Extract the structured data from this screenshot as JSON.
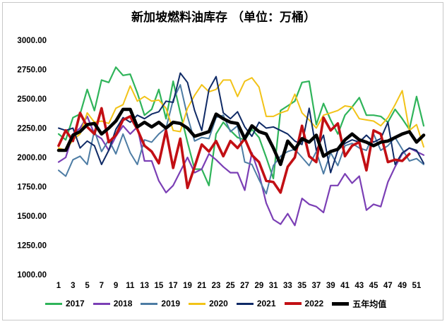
{
  "chart_data": {
    "type": "line",
    "title": "新加坡燃料油库存  （单位：万桶）",
    "xlabel": "",
    "ylabel": "",
    "ylim": [
      1000,
      3000
    ],
    "yticks": [
      "1000.00",
      "1250.00",
      "1500.00",
      "1750.00",
      "2000.00",
      "2250.00",
      "2500.00",
      "2750.00",
      "3000.00"
    ],
    "x": [
      1,
      2,
      3,
      4,
      5,
      6,
      7,
      8,
      9,
      10,
      11,
      12,
      13,
      14,
      15,
      16,
      17,
      18,
      19,
      20,
      21,
      22,
      23,
      24,
      25,
      26,
      27,
      28,
      29,
      30,
      31,
      32,
      33,
      34,
      35,
      36,
      37,
      38,
      39,
      40,
      41,
      42,
      43,
      44,
      45,
      46,
      47,
      48,
      49,
      50,
      51,
      52
    ],
    "xticks": [
      "1",
      "3",
      "5",
      "7",
      "9",
      "11",
      "13",
      "15",
      "17",
      "19",
      "21",
      "23",
      "25",
      "27",
      "29",
      "31",
      "33",
      "35",
      "37",
      "39",
      "41",
      "43",
      "45",
      "47",
      "49",
      "51"
    ],
    "series": [
      {
        "name": "2017",
        "color": "#2fb45a",
        "width": 2.2,
        "values": [
          2200,
          2150,
          2340,
          2370,
          2580,
          2400,
          2660,
          2640,
          2770,
          2700,
          2710,
          2550,
          2360,
          2410,
          2580,
          2330,
          2650,
          2380,
          2130,
          1900,
          1900,
          1760,
          2200,
          2300,
          2230,
          2170,
          2150,
          2240,
          2170,
          2000,
          1820,
          2400,
          2440,
          2480,
          2640,
          2650,
          2280,
          2460,
          2320,
          2200,
          2360,
          2430,
          2510,
          2360,
          2360,
          2350,
          2300,
          2410,
          2330,
          2240,
          2520,
          2270
        ]
      },
      {
        "name": "2018",
        "color": "#7b3fb5",
        "width": 2.2,
        "values": [
          1960,
          2000,
          2200,
          2250,
          2350,
          2200,
          2160,
          2060,
          2180,
          2270,
          2200,
          2260,
          1970,
          1970,
          1800,
          1700,
          1760,
          1880,
          2000,
          1870,
          1900,
          2030,
          1980,
          1920,
          1870,
          1870,
          1720,
          2040,
          1860,
          1610,
          1470,
          1430,
          1520,
          1420,
          1650,
          1600,
          1580,
          1530,
          1760,
          1760,
          1860,
          1780,
          1840,
          1550,
          1600,
          1580,
          1790,
          1920,
          2030,
          2080,
          2050,
          2020
        ]
      },
      {
        "name": "2019",
        "color": "#4d7ca4",
        "width": 2.0,
        "values": [
          1890,
          1840,
          1980,
          2010,
          1940,
          2230,
          2050,
          2150,
          2030,
          2200,
          2040,
          1940,
          2150,
          2130,
          2200,
          2250,
          2490,
          2620,
          2350,
          2140,
          2170,
          2160,
          2340,
          2360,
          2220,
          2270,
          1960,
          1940,
          1810,
          1690,
          1930,
          2010,
          2050,
          2070,
          2000,
          1930,
          2050,
          1860,
          2040,
          1930,
          2100,
          2120,
          2080,
          2060,
          2200,
          2060,
          2100,
          2170,
          2070,
          1970,
          1990,
          1940
        ]
      },
      {
        "name": "2020",
        "color": "#f2c318",
        "width": 2.0,
        "values": [
          2080,
          2060,
          2150,
          2200,
          2380,
          2300,
          2310,
          2290,
          2420,
          2450,
          2610,
          2480,
          2520,
          2480,
          2490,
          2420,
          2230,
          2220,
          2420,
          2530,
          2620,
          2560,
          2580,
          2660,
          2660,
          2520,
          2650,
          2680,
          2600,
          2350,
          2350,
          2380,
          2400,
          2540,
          2380,
          2320,
          2250,
          2360,
          2380,
          2400,
          2440,
          2430,
          2330,
          2320,
          2310,
          2270,
          2340,
          2450,
          2570,
          2230,
          2280,
          2090
        ]
      },
      {
        "name": "2021",
        "color": "#0f2a66",
        "width": 2.0,
        "values": [
          2250,
          2230,
          2250,
          2080,
          2140,
          2100,
          1940,
          2060,
          2240,
          2340,
          2300,
          2360,
          2330,
          2370,
          2390,
          2480,
          2470,
          2720,
          2640,
          2400,
          2230,
          2580,
          2690,
          2380,
          2330,
          2390,
          2260,
          2180,
          2300,
          2250,
          2260,
          2230,
          2200,
          2140,
          2110,
          2420,
          2060,
          2190,
          1870,
          2060,
          2120,
          2150,
          2130,
          2190,
          2130,
          2160,
          2300,
          1940,
          2040,
          2080,
          2060,
          1950
        ]
      },
      {
        "name": "2022",
        "color": "#c20f14",
        "width": 3.6,
        "values": [
          2100,
          2230,
          2140,
          2380,
          2260,
          2200,
          2420,
          2130,
          2190,
          2320,
          2350,
          2240,
          2100,
          2050,
          1950,
          2230,
          1910,
          2160,
          1740,
          1920,
          2110,
          2050,
          2140,
          2010,
          2140,
          2080,
          2160,
          2020,
          1960,
          1800,
          1790,
          1700,
          1920,
          2000,
          2270,
          2010,
          1960,
          2340,
          2230,
          2290,
          2010,
          2100,
          2130,
          1890,
          2230,
          2200,
          1960,
          1980,
          1970,
          2030,
          null,
          null
        ]
      },
      {
        "name": "五年均值",
        "color": "#000000",
        "width": 4.6,
        "values": [
          2060,
          2060,
          2190,
          2220,
          2280,
          2290,
          2200,
          2250,
          2310,
          2410,
          2410,
          2260,
          2300,
          2260,
          2300,
          2250,
          2300,
          2290,
          2250,
          2180,
          2200,
          2220,
          2370,
          2330,
          2300,
          2290,
          2160,
          2270,
          2220,
          2200,
          2080,
          1940,
          2140,
          2070,
          2160,
          2130,
          2190,
          2010,
          2050,
          2070,
          2150,
          2200,
          2150,
          2130,
          2100,
          2130,
          2140,
          2170,
          2200,
          2220,
          2130,
          2190
        ]
      }
    ]
  }
}
